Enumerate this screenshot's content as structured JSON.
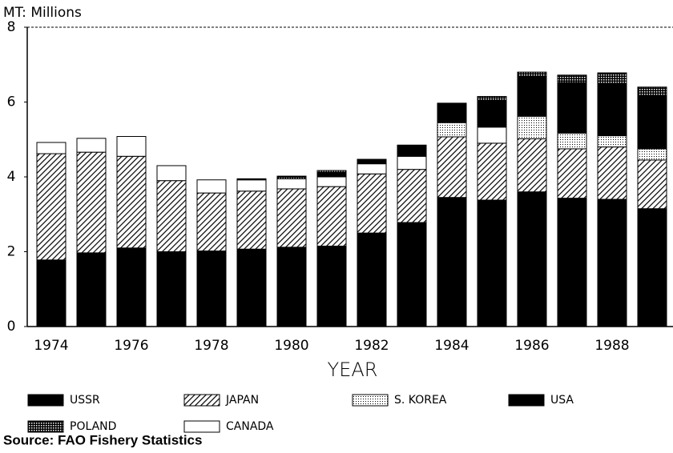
{
  "chart_data": {
    "type": "stacked-bar",
    "y_label": "MT: Millions",
    "x_label": "YEAR",
    "source": "Source: FAO Fishery Statistics",
    "categories": [
      "1974",
      null,
      "1976",
      null,
      "1978",
      null,
      "1980",
      null,
      "1982",
      null,
      "1984",
      null,
      "1986",
      null,
      "1988",
      null
    ],
    "series": [
      {
        "name": "USSR",
        "color": "#000000",
        "pattern": "solid",
        "values": [
          1.78,
          1.97,
          2.1,
          2.0,
          2.02,
          2.07,
          2.12,
          2.15,
          2.5,
          2.78,
          3.45,
          3.38,
          3.6,
          3.43,
          3.4,
          3.15
        ]
      },
      {
        "name": "JAPAN",
        "color": "#000000",
        "pattern": "hatch",
        "values": [
          2.84,
          2.69,
          2.45,
          1.9,
          1.55,
          1.55,
          1.56,
          1.59,
          1.58,
          1.42,
          1.62,
          1.52,
          1.42,
          1.32,
          1.4,
          1.3
        ]
      },
      {
        "name": "S. KOREA",
        "color": "#000000",
        "pattern": "dots",
        "values": [
          0,
          0,
          0,
          0,
          0,
          0,
          0,
          0,
          0,
          0,
          0.38,
          0,
          0.6,
          0.42,
          0.3,
          0.3
        ]
      },
      {
        "name": "USA",
        "color": "#000000",
        "pattern": "solid",
        "values": [
          0,
          0,
          0,
          0,
          0,
          0,
          0,
          0.1,
          0.12,
          0.3,
          0.52,
          0.72,
          1.06,
          1.35,
          1.4,
          1.43
        ]
      },
      {
        "name": "POLAND",
        "color": "#000000",
        "pattern": "grid",
        "values": [
          0,
          0,
          0,
          0,
          0,
          0.03,
          0.07,
          0.07,
          0,
          0,
          0,
          0.1,
          0.12,
          0.2,
          0.28,
          0.22
        ]
      },
      {
        "name": "CANADA",
        "color": "#000000",
        "pattern": "none",
        "values": [
          0.3,
          0.37,
          0.53,
          0.4,
          0.35,
          0.3,
          0.27,
          0.26,
          0.27,
          0.35,
          0,
          0.43,
          0,
          0,
          0,
          0
        ]
      }
    ],
    "stack_order": [
      0,
      1,
      2,
      5,
      3,
      4
    ],
    "ylim": [
      0,
      8
    ],
    "yticks": [
      0,
      2,
      4,
      6,
      8
    ]
  }
}
